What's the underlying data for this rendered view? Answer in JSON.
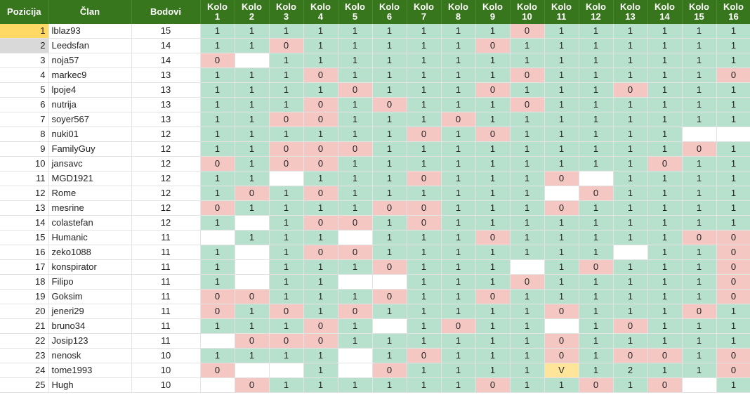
{
  "headers": {
    "position": "Pozicija",
    "member": "Član",
    "points": "Bodovi",
    "rounds": [
      "Kolo\n1",
      "Kolo\n2",
      "Kolo\n3",
      "Kolo\n4",
      "Kolo\n5",
      "Kolo\n6",
      "Kolo\n7",
      "Kolo\n8",
      "Kolo\n9",
      "Kolo\n10",
      "Kolo\n11",
      "Kolo\n12",
      "Kolo\n13",
      "Kolo\n14",
      "Kolo\n15",
      "Kolo\n16"
    ]
  },
  "colors": {
    "header_bg": "#38761d",
    "green": "#b7e1cd",
    "red": "#f4c7c3",
    "gold": "#ffd966",
    "silver": "#d9d9d9",
    "yellow": "#ffe599"
  },
  "rows": [
    {
      "pos": "1",
      "name": "lblaz93",
      "pts": "15",
      "k": [
        "1",
        "1",
        "1",
        "1",
        "1",
        "1",
        "1",
        "1",
        "1",
        "0",
        "1",
        "1",
        "1",
        "1",
        "1",
        "1"
      ]
    },
    {
      "pos": "2",
      "name": "Leedsfan",
      "pts": "14",
      "k": [
        "1",
        "1",
        "0",
        "1",
        "1",
        "1",
        "1",
        "1",
        "0",
        "1",
        "1",
        "1",
        "1",
        "1",
        "1",
        "1"
      ]
    },
    {
      "pos": "3",
      "name": "noja57",
      "pts": "14",
      "k": [
        "0",
        "",
        "1",
        "1",
        "1",
        "1",
        "1",
        "1",
        "1",
        "1",
        "1",
        "1",
        "1",
        "1",
        "1",
        "1"
      ]
    },
    {
      "pos": "4",
      "name": "markec9",
      "pts": "13",
      "k": [
        "1",
        "1",
        "1",
        "0",
        "1",
        "1",
        "1",
        "1",
        "1",
        "0",
        "1",
        "1",
        "1",
        "1",
        "1",
        "0"
      ]
    },
    {
      "pos": "5",
      "name": "lpoje4",
      "pts": "13",
      "k": [
        "1",
        "1",
        "1",
        "1",
        "0",
        "1",
        "1",
        "1",
        "0",
        "1",
        "1",
        "1",
        "0",
        "1",
        "1",
        "1"
      ]
    },
    {
      "pos": "6",
      "name": "nutrija",
      "pts": "13",
      "k": [
        "1",
        "1",
        "1",
        "0",
        "1",
        "0",
        "1",
        "1",
        "1",
        "0",
        "1",
        "1",
        "1",
        "1",
        "1",
        "1"
      ]
    },
    {
      "pos": "7",
      "name": "soyer567",
      "pts": "13",
      "k": [
        "1",
        "1",
        "0",
        "0",
        "1",
        "1",
        "1",
        "0",
        "1",
        "1",
        "1",
        "1",
        "1",
        "1",
        "1",
        "1"
      ]
    },
    {
      "pos": "8",
      "name": "nuki01",
      "pts": "12",
      "k": [
        "1",
        "1",
        "1",
        "1",
        "1",
        "1",
        "0",
        "1",
        "0",
        "1",
        "1",
        "1",
        "1",
        "1",
        "",
        ""
      ]
    },
    {
      "pos": "9",
      "name": "FamilyGuy",
      "pts": "12",
      "k": [
        "1",
        "1",
        "0",
        "0",
        "0",
        "1",
        "1",
        "1",
        "1",
        "1",
        "1",
        "1",
        "1",
        "1",
        "0",
        "1"
      ]
    },
    {
      "pos": "10",
      "name": "jansavc",
      "pts": "12",
      "k": [
        "0",
        "1",
        "0",
        "0",
        "1",
        "1",
        "1",
        "1",
        "1",
        "1",
        "1",
        "1",
        "1",
        "0",
        "1",
        "1"
      ]
    },
    {
      "pos": "11",
      "name": "MGD1921",
      "pts": "12",
      "k": [
        "1",
        "1",
        "",
        "1",
        "1",
        "1",
        "0",
        "1",
        "1",
        "1",
        "0",
        "",
        "1",
        "1",
        "1",
        "1"
      ]
    },
    {
      "pos": "12",
      "name": "Rome",
      "pts": "12",
      "k": [
        "1",
        "0",
        "1",
        "0",
        "1",
        "1",
        "1",
        "1",
        "1",
        "1",
        "",
        "0",
        "1",
        "1",
        "1",
        "1"
      ]
    },
    {
      "pos": "13",
      "name": "mesrine",
      "pts": "12",
      "k": [
        "0",
        "1",
        "1",
        "1",
        "1",
        "0",
        "0",
        "1",
        "1",
        "1",
        "0",
        "1",
        "1",
        "1",
        "1",
        "1"
      ]
    },
    {
      "pos": "14",
      "name": "colastefan",
      "pts": "12",
      "k": [
        "1",
        "",
        "1",
        "0",
        "0",
        "1",
        "0",
        "1",
        "1",
        "1",
        "1",
        "1",
        "1",
        "1",
        "1",
        "1"
      ]
    },
    {
      "pos": "15",
      "name": "Humanic",
      "pts": "11",
      "k": [
        "",
        "1",
        "1",
        "1",
        "",
        "1",
        "1",
        "1",
        "0",
        "1",
        "1",
        "1",
        "1",
        "1",
        "0",
        "0"
      ]
    },
    {
      "pos": "16",
      "name": "zeko1088",
      "pts": "11",
      "k": [
        "1",
        "",
        "1",
        "0",
        "0",
        "1",
        "1",
        "1",
        "1",
        "1",
        "1",
        "1",
        "",
        "1",
        "1",
        "0"
      ]
    },
    {
      "pos": "17",
      "name": "konspirator",
      "pts": "11",
      "k": [
        "1",
        "",
        "1",
        "1",
        "1",
        "0",
        "1",
        "1",
        "1",
        "",
        "1",
        "0",
        "1",
        "1",
        "1",
        "0"
      ]
    },
    {
      "pos": "18",
      "name": "Filipo",
      "pts": "11",
      "k": [
        "1",
        "",
        "1",
        "1",
        "",
        "",
        "1",
        "1",
        "1",
        "0",
        "1",
        "1",
        "1",
        "1",
        "1",
        "0"
      ]
    },
    {
      "pos": "19",
      "name": "Goksim",
      "pts": "11",
      "k": [
        "0",
        "0",
        "1",
        "1",
        "1",
        "0",
        "1",
        "1",
        "0",
        "1",
        "1",
        "1",
        "1",
        "1",
        "1",
        "0"
      ]
    },
    {
      "pos": "20",
      "name": "jeneri29",
      "pts": "11",
      "k": [
        "0",
        "1",
        "0",
        "1",
        "0",
        "1",
        "1",
        "1",
        "1",
        "1",
        "0",
        "1",
        "1",
        "1",
        "0",
        "1"
      ]
    },
    {
      "pos": "21",
      "name": "bruno34",
      "pts": "11",
      "k": [
        "1",
        "1",
        "1",
        "0",
        "1",
        "",
        "1",
        "0",
        "1",
        "1",
        "",
        "1",
        "0",
        "1",
        "1",
        "1"
      ]
    },
    {
      "pos": "22",
      "name": "Josip123",
      "pts": "11",
      "k": [
        "",
        "0",
        "0",
        "0",
        "1",
        "1",
        "1",
        "1",
        "1",
        "1",
        "0",
        "1",
        "1",
        "1",
        "1",
        "1"
      ]
    },
    {
      "pos": "23",
      "name": "nenosk",
      "pts": "10",
      "k": [
        "1",
        "1",
        "1",
        "1",
        "",
        "1",
        "0",
        "1",
        "1",
        "1",
        "0",
        "1",
        "0",
        "0",
        "1",
        "0"
      ]
    },
    {
      "pos": "24",
      "name": "tome1993",
      "pts": "10",
      "k": [
        "0",
        "",
        "",
        "1",
        "",
        "0",
        "1",
        "1",
        "1",
        "1",
        "V",
        "1",
        "2",
        "1",
        "1",
        "0"
      ]
    },
    {
      "pos": "25",
      "name": "Hugh",
      "pts": "10",
      "k": [
        "",
        "0",
        "1",
        "1",
        "1",
        "1",
        "1",
        "1",
        "0",
        "1",
        "1",
        "0",
        "1",
        "0",
        "",
        "1"
      ]
    }
  ]
}
